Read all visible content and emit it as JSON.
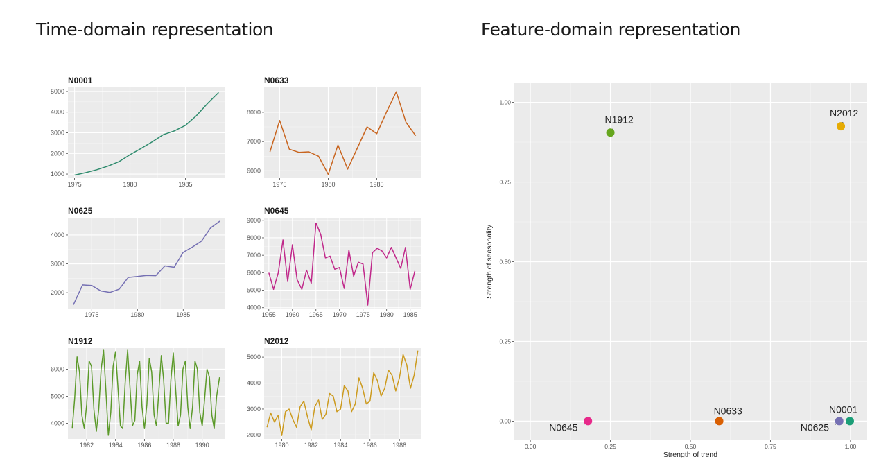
{
  "left_heading": "Time-domain representation",
  "right_heading": "Feature-domain representation",
  "chart_data": [
    {
      "type": "line",
      "title": "N0001",
      "color": "#2e8b6d",
      "xlim": [
        1974.4,
        1988.6
      ],
      "ylim": [
        800,
        5200
      ],
      "xticks": [
        1975,
        1980,
        1985
      ],
      "yticks": [
        1000,
        2000,
        3000,
        4000,
        5000
      ],
      "x": [
        1975,
        1976,
        1977,
        1978,
        1979,
        1980,
        1981,
        1982,
        1983,
        1984,
        1985,
        1986,
        1987,
        1988
      ],
      "y": [
        950,
        1070,
        1210,
        1380,
        1600,
        1940,
        2240,
        2560,
        2910,
        3090,
        3360,
        3830,
        4420,
        4950
      ]
    },
    {
      "type": "line",
      "title": "N0633",
      "color": "#c8641e",
      "xlim": [
        1973.4,
        1989.6
      ],
      "ylim": [
        5750,
        8850
      ],
      "xticks": [
        1975,
        1980,
        1985
      ],
      "yticks": [
        6000,
        7000,
        8000
      ],
      "x": [
        1974,
        1975,
        1976,
        1977,
        1978,
        1979,
        1980,
        1981,
        1982,
        1983,
        1984,
        1985,
        1986,
        1987,
        1988,
        1989
      ],
      "y": [
        6650,
        7720,
        6740,
        6630,
        6650,
        6500,
        5880,
        6880,
        6060,
        6780,
        7500,
        7270,
        8010,
        8700,
        7660,
        7200
      ]
    },
    {
      "type": "line",
      "title": "N0625",
      "color": "#7570b3",
      "xlim": [
        1972.4,
        1989.6
      ],
      "ylim": [
        1450,
        4600
      ],
      "xticks": [
        1975,
        1980,
        1985
      ],
      "yticks": [
        2000,
        3000,
        4000
      ],
      "x": [
        1973,
        1974,
        1975,
        1976,
        1977,
        1978,
        1979,
        1980,
        1981,
        1982,
        1983,
        1984,
        1985,
        1986,
        1987,
        1988,
        1989
      ],
      "y": [
        1580,
        2270,
        2250,
        2060,
        2010,
        2120,
        2530,
        2560,
        2600,
        2590,
        2930,
        2880,
        3400,
        3580,
        3790,
        4250,
        4480
      ]
    },
    {
      "type": "line",
      "title": "N0645",
      "color": "#c0288a",
      "xlim": [
        1954,
        1987.4
      ],
      "ylim": [
        3950,
        9150
      ],
      "xticks": [
        1955,
        1960,
        1965,
        1970,
        1975,
        1980,
        1985
      ],
      "yticks": [
        4000,
        5000,
        6000,
        7000,
        8000,
        9000
      ],
      "x": [
        1955,
        1956,
        1957,
        1958,
        1959,
        1960,
        1961,
        1962,
        1963,
        1964,
        1965,
        1966,
        1967,
        1968,
        1969,
        1970,
        1971,
        1972,
        1973,
        1974,
        1975,
        1976,
        1977,
        1978,
        1979,
        1980,
        1981,
        1982,
        1983,
        1984,
        1985,
        1986
      ],
      "y": [
        6000,
        5050,
        6000,
        7880,
        5500,
        7600,
        5600,
        5050,
        6150,
        5400,
        8850,
        8200,
        6850,
        6950,
        6200,
        6300,
        5100,
        7300,
        5800,
        6600,
        6500,
        4150,
        7150,
        7400,
        7250,
        6850,
        7450,
        6850,
        6250,
        7450,
        5050,
        6100
      ]
    },
    {
      "type": "line",
      "title": "N1912",
      "color": "#5c9a2a",
      "xlim": [
        1980.7,
        1991.6
      ],
      "ylim": [
        3420,
        6780
      ],
      "xticks": [
        1982,
        1984,
        1986,
        1988,
        1990
      ],
      "yticks": [
        4000,
        5000,
        6000
      ],
      "x": [
        1981.0,
        1981.167,
        1981.333,
        1981.5,
        1981.667,
        1981.833,
        1982.0,
        1982.167,
        1982.333,
        1982.5,
        1982.667,
        1982.833,
        1983.0,
        1983.167,
        1983.333,
        1983.5,
        1983.667,
        1983.833,
        1984.0,
        1984.167,
        1984.333,
        1984.5,
        1984.667,
        1984.833,
        1985.0,
        1985.167,
        1985.333,
        1985.5,
        1985.667,
        1985.833,
        1986.0,
        1986.167,
        1986.333,
        1986.5,
        1986.667,
        1986.833,
        1987.0,
        1987.167,
        1987.333,
        1987.5,
        1987.667,
        1987.833,
        1988.0,
        1988.167,
        1988.333,
        1988.5,
        1988.667,
        1988.833,
        1989.0,
        1989.167,
        1989.333,
        1989.5,
        1989.667,
        1989.833,
        1990.0,
        1990.167,
        1990.333,
        1990.5,
        1990.667,
        1990.833,
        1991.0,
        1991.2
      ],
      "y": [
        3800,
        4900,
        6450,
        5900,
        4300,
        3800,
        4700,
        6300,
        6100,
        4500,
        3700,
        4500,
        6000,
        6700,
        5200,
        3550,
        4400,
        6100,
        6650,
        5300,
        3900,
        3800,
        5500,
        6700,
        5300,
        3900,
        4100,
        5800,
        6300,
        4600,
        3800,
        4700,
        6400,
        5900,
        4300,
        3900,
        5200,
        6500,
        5600,
        4000,
        4000,
        5600,
        6600,
        5200,
        3900,
        4300,
        6000,
        6300,
        4600,
        3800,
        4600,
        6300,
        6000,
        4400,
        3900,
        4900,
        6000,
        5700,
        4300,
        3800,
        5000,
        5700
      ]
    },
    {
      "type": "line",
      "title": "N2012",
      "color": "#cc9a1e",
      "xlim": [
        1978.8,
        1989.5
      ],
      "ylim": [
        1850,
        5350
      ],
      "xticks": [
        1980,
        1982,
        1984,
        1986,
        1988
      ],
      "yticks": [
        2000,
        3000,
        4000,
        5000
      ],
      "x": [
        1979.0,
        1979.25,
        1979.5,
        1979.75,
        1980.0,
        1980.25,
        1980.5,
        1980.75,
        1981.0,
        1981.25,
        1981.5,
        1981.75,
        1982.0,
        1982.25,
        1982.5,
        1982.75,
        1983.0,
        1983.25,
        1983.5,
        1983.75,
        1984.0,
        1984.25,
        1984.5,
        1984.75,
        1985.0,
        1985.25,
        1985.5,
        1985.75,
        1986.0,
        1986.25,
        1986.5,
        1986.75,
        1987.0,
        1987.25,
        1987.5,
        1987.75,
        1988.0,
        1988.25,
        1988.5,
        1988.75,
        1989.0,
        1989.25
      ],
      "y": [
        2300,
        2850,
        2500,
        2750,
        1980,
        2900,
        3000,
        2600,
        2300,
        3100,
        3300,
        2700,
        2200,
        3100,
        3350,
        2600,
        2800,
        3600,
        3500,
        2900,
        3000,
        3900,
        3700,
        2900,
        3200,
        4200,
        3800,
        3200,
        3300,
        4400,
        4100,
        3500,
        3800,
        4500,
        4300,
        3700,
        4200,
        5100,
        4700,
        3800,
        4300,
        5250
      ]
    },
    {
      "type": "scatter",
      "xlabel": "Strength of trend",
      "ylabel": "Strength of seasonality",
      "xlim": [
        -0.05,
        1.05
      ],
      "ylim": [
        -0.06,
        1.06
      ],
      "xticks": [
        0.0,
        0.25,
        0.5,
        0.75,
        1.0
      ],
      "xtick_labels": [
        "0.00",
        "0.25",
        "0.50",
        "0.75",
        "1.00"
      ],
      "yticks": [
        0.0,
        0.25,
        0.5,
        0.75,
        1.0
      ],
      "ytick_labels": [
        "0.00",
        "0.25",
        "0.50",
        "0.75",
        "1.00"
      ],
      "points": [
        {
          "label": "N1912",
          "x": 0.25,
          "y": 0.905,
          "color": "#66a61e"
        },
        {
          "label": "N2012",
          "x": 0.97,
          "y": 0.925,
          "color": "#e6ab02"
        },
        {
          "label": "N0645",
          "x": 0.18,
          "y": 0.0,
          "color": "#e7298a"
        },
        {
          "label": "N0633",
          "x": 0.59,
          "y": 0.0,
          "color": "#d95f02"
        },
        {
          "label": "N0625",
          "x": 0.965,
          "y": 0.0,
          "color": "#7570b3"
        },
        {
          "label": "N0001",
          "x": 0.998,
          "y": 0.0,
          "color": "#1b9e77"
        }
      ]
    }
  ]
}
